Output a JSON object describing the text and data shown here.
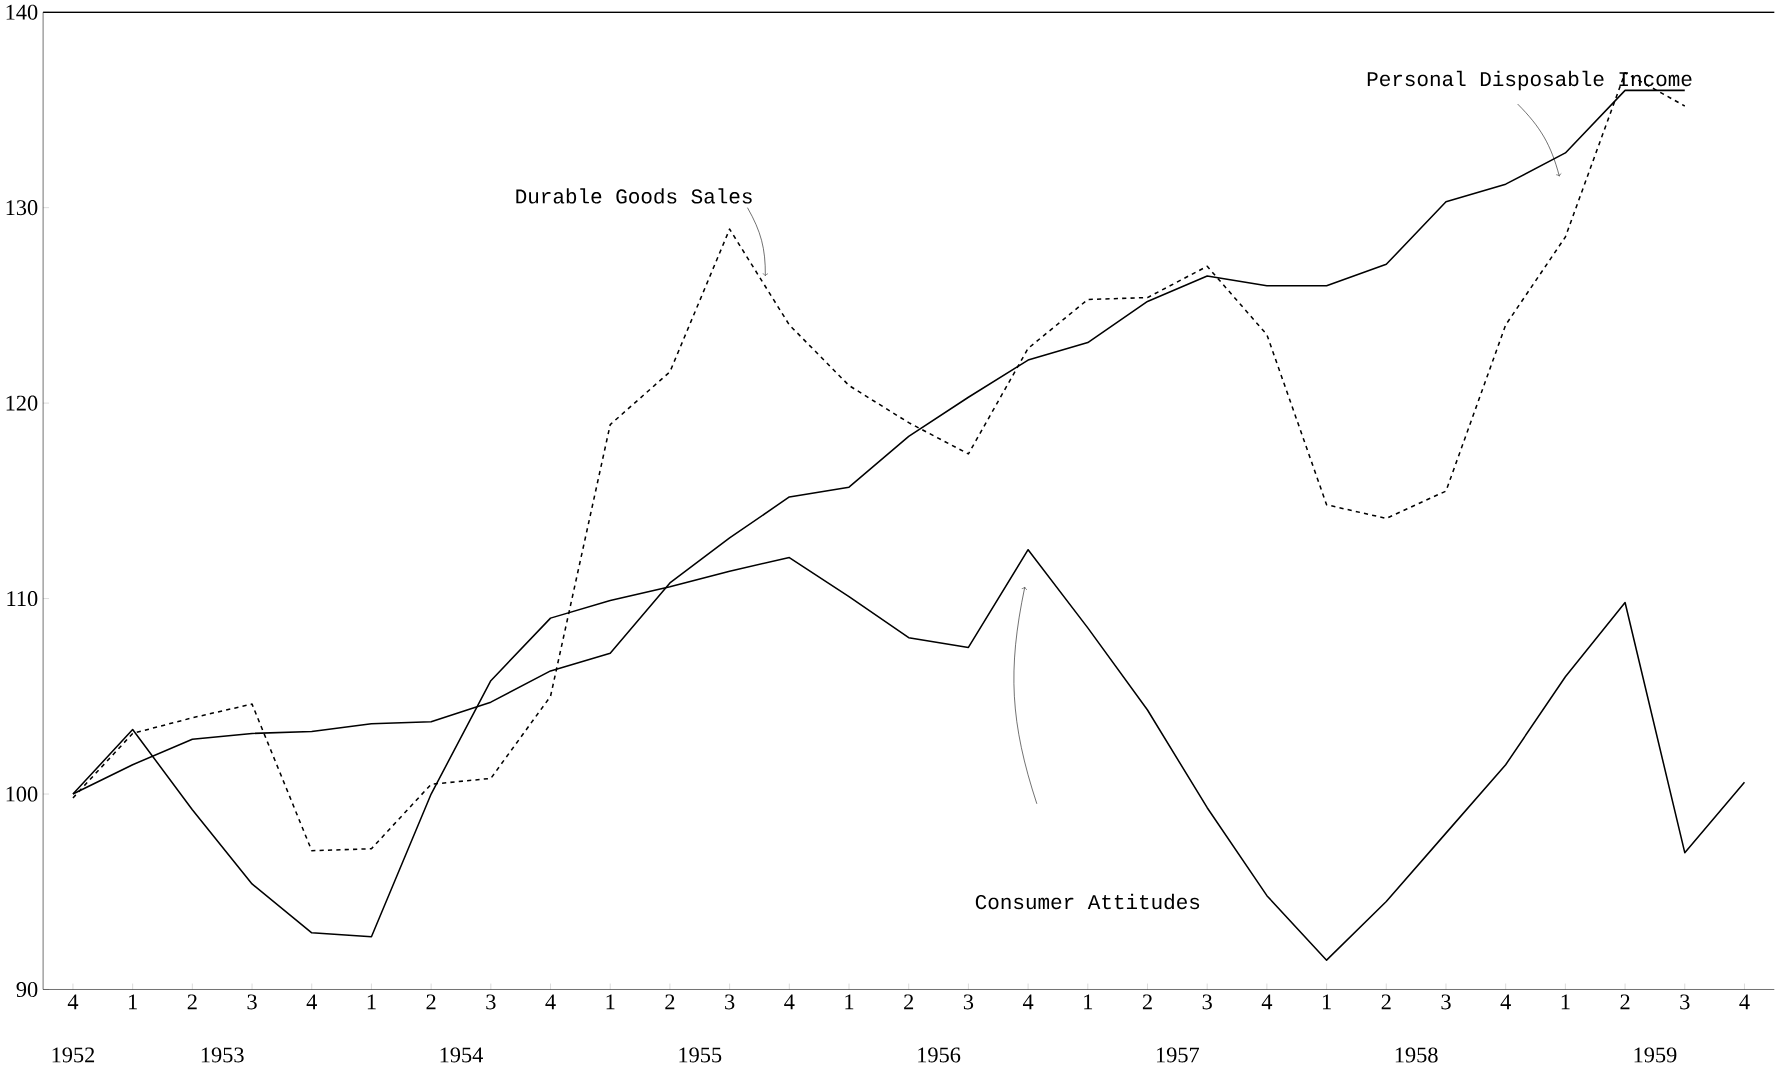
{
  "chart_data": {
    "type": "line",
    "categories": [
      "4",
      "1",
      "2",
      "3",
      "4",
      "1",
      "2",
      "3",
      "4",
      "1",
      "2",
      "3",
      "4",
      "1",
      "2",
      "3",
      "4",
      "1",
      "2",
      "3",
      "4",
      "1",
      "2",
      "3",
      "4",
      "1",
      "2",
      "3",
      "4"
    ],
    "series": [
      {
        "name": "Consumer Attitudes",
        "color": "#000000",
        "line_style": "solid",
        "values": [
          100,
          103.3,
          99.2,
          95.4,
          92.9,
          92.7,
          100,
          105.8,
          109,
          109.9,
          110.6,
          111.4,
          112.1,
          110.1,
          108,
          107.5,
          112.5,
          108.5,
          104.3,
          99.3,
          94.8,
          91.5,
          94.5,
          98,
          101.5,
          106,
          109.8,
          97,
          100.6
        ]
      },
      {
        "name": "Personal Disposable Income",
        "color": "#000000",
        "line_style": "solid",
        "values": [
          100,
          101.5,
          102.8,
          103.1,
          103.2,
          103.6,
          103.7,
          104.7,
          106.3,
          107.2,
          110.8,
          113.1,
          115.2,
          115.7,
          118.3,
          120.3,
          122.2,
          123.1,
          125.2,
          126.5,
          126,
          126,
          127.1,
          130.3,
          131.2,
          132.8,
          136,
          136,
          null
        ]
      },
      {
        "name": "Durable Goods Sales",
        "color": "#000000",
        "line_style": "dashed",
        "values": [
          99.8,
          103.1,
          103.9,
          104.6,
          97.1,
          97.2,
          100.5,
          100.8,
          105,
          118.9,
          121.6,
          128.9,
          124,
          120.9,
          119,
          117.4,
          122.8,
          125.3,
          125.4,
          127,
          123.5,
          114.8,
          114.1,
          115.5,
          124,
          128.5,
          136.9,
          135.2,
          null
        ]
      }
    ],
    "ylim": [
      90,
      140
    ],
    "yticks": [
      90,
      100,
      110,
      120,
      130,
      140
    ],
    "grid": false,
    "marker": "none",
    "annotations": [
      "1952",
      "1953",
      "1954",
      "1955",
      "1956",
      "1957",
      "1958",
      "1959"
    ]
  }
}
